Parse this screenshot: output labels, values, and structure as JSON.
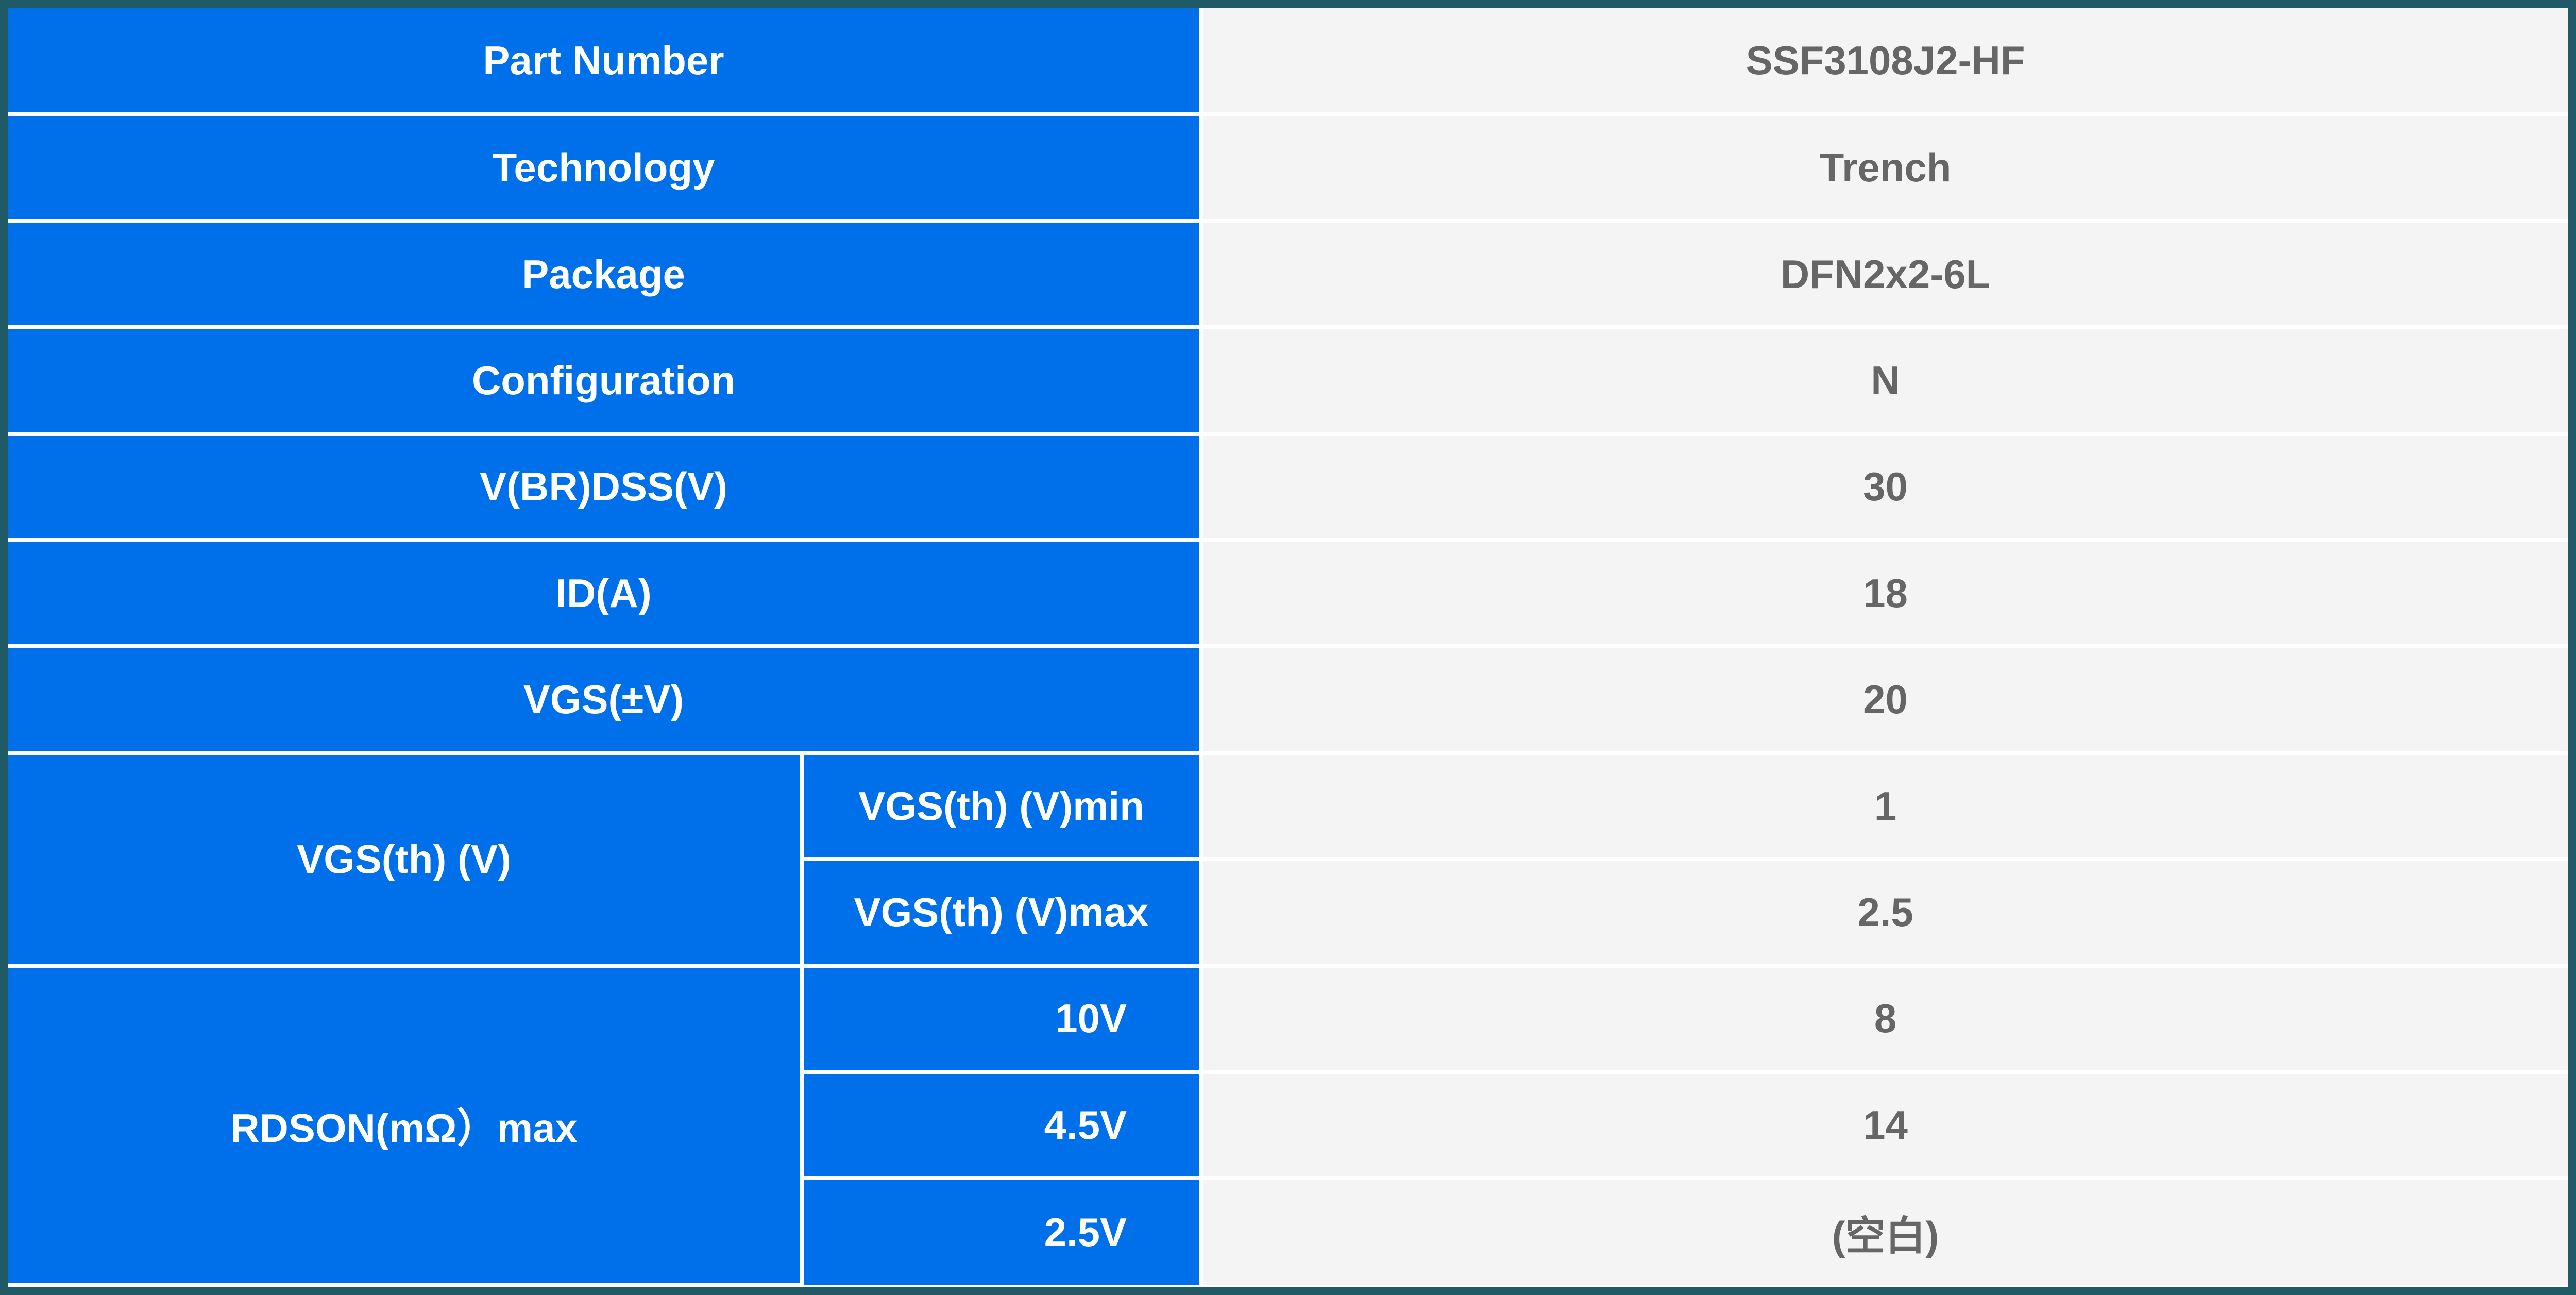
{
  "colors": {
    "label_bg": "#006fea",
    "value_bg": "#f4f4f4",
    "frame": "#1f5a66",
    "value_text": "#666666"
  },
  "rows": {
    "part_number": {
      "label": "Part Number",
      "value": "SSF3108J2-HF"
    },
    "technology": {
      "label": "Technology",
      "value": "Trench"
    },
    "package": {
      "label": "Package",
      "value": "DFN2x2-6L"
    },
    "configuration": {
      "label": "Configuration",
      "value": "N"
    },
    "vbrdss": {
      "label": "V(BR)DSS(V)",
      "value": "30"
    },
    "id": {
      "label": "ID(A)",
      "value": "18"
    },
    "vgs": {
      "label": "VGS(±V)",
      "value": "20"
    },
    "vgsth": {
      "label": "VGS(th) (V)",
      "min_label": "VGS(th) (V)min",
      "min_value": "1",
      "max_label": "VGS(th) (V)max",
      "max_value": "2.5"
    },
    "rdson": {
      "label": "RDSON(mΩ）max",
      "v10_label": "10V",
      "v10_value": "8",
      "v45_label": "4.5V",
      "v45_value": "14",
      "v25_label": "2.5V",
      "v25_value": "(空白)"
    }
  }
}
